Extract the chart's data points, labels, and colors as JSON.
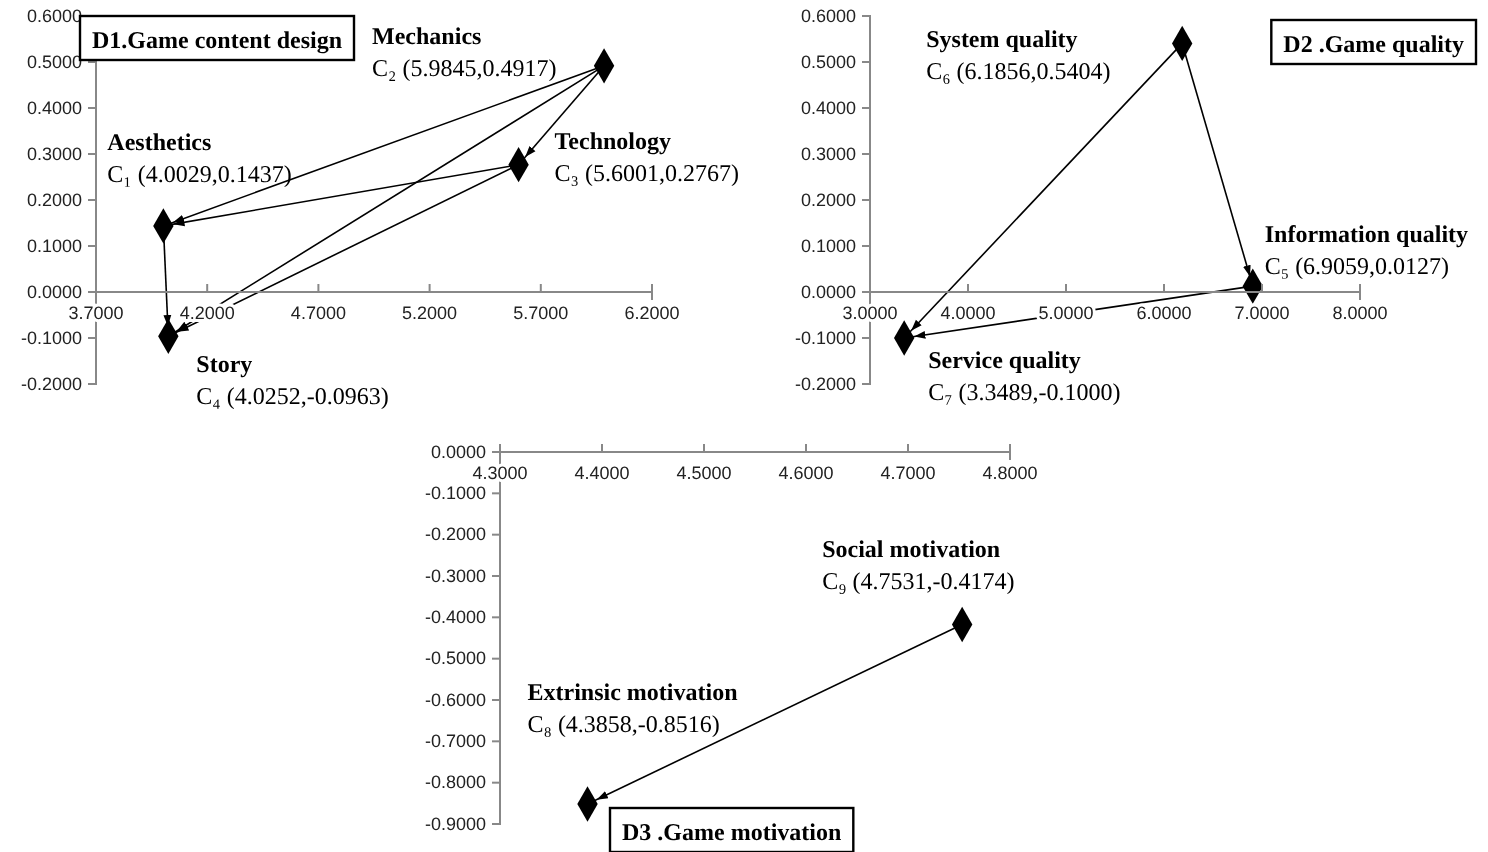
{
  "chart_data": [
    {
      "type": "scatter",
      "title": "D1.Game content design",
      "grid": false,
      "marker": "diamond",
      "xlim": [
        3.7,
        6.2
      ],
      "xticks": [
        {
          "value": 3.7,
          "label": "3.7000"
        },
        {
          "value": 4.2,
          "label": "4.2000"
        },
        {
          "value": 4.7,
          "label": "4.7000"
        },
        {
          "value": 5.2,
          "label": "5.2000"
        },
        {
          "value": 5.7,
          "label": "5.7000"
        },
        {
          "value": 6.2,
          "label": "6.2000"
        }
      ],
      "ylim": [
        -0.2,
        0.6
      ],
      "yticks": [
        {
          "value": -0.2,
          "label": "-0.2000"
        },
        {
          "value": -0.1,
          "label": "-0.1000"
        },
        {
          "value": 0,
          "label": "0.0000"
        },
        {
          "value": 0.1,
          "label": "0.1000"
        },
        {
          "value": 0.2,
          "label": "0.2000"
        },
        {
          "value": 0.3,
          "label": "0.3000"
        },
        {
          "value": 0.4,
          "label": "0.4000"
        },
        {
          "value": 0.5,
          "label": "0.5000"
        },
        {
          "value": 0.6,
          "label": "0.6000"
        }
      ],
      "series": [
        {
          "type": "scatter",
          "color": "#000000",
          "x": [
            4.0029,
            5.9845,
            5.6001,
            4.0252
          ],
          "values": [
            0.1437,
            0.4917,
            0.2767,
            -0.0963
          ]
        },
        {
          "type": "line",
          "marker": "none",
          "color": "#000000",
          "x": [
            5.9845,
            4.0029
          ],
          "values": [
            0.4917,
            0.1437
          ]
        },
        {
          "type": "line",
          "marker": "none",
          "color": "#000000",
          "x": [
            5.6001,
            4.0029
          ],
          "values": [
            0.2767,
            0.1437
          ]
        },
        {
          "type": "line",
          "marker": "none",
          "color": "#000000",
          "x": [
            5.9845,
            4.0252
          ],
          "values": [
            0.4917,
            -0.0963
          ]
        },
        {
          "type": "line",
          "marker": "none",
          "color": "#000000",
          "x": [
            5.6001,
            4.0252
          ],
          "values": [
            0.2767,
            -0.0963
          ]
        },
        {
          "type": "line",
          "marker": "none",
          "color": "#000000",
          "x": [
            4.0029,
            4.0252
          ],
          "values": [
            0.1437,
            -0.0963
          ]
        },
        {
          "type": "line",
          "marker": "none",
          "color": "#000000",
          "x": [
            5.9845,
            5.6001
          ],
          "values": [
            0.4917,
            0.2767
          ]
        }
      ],
      "annotations": [
        {
          "text": "Aesthetics\nC₁ (4.0029,0.1437)",
          "x": 4.0029,
          "y": 0.1437
        },
        {
          "text": "Mechanics\nC₂ (5.9845,0.4917)",
          "x": 5.9845,
          "y": 0.4917
        },
        {
          "text": "Technology\nC₃ (5.6001,0.2767)",
          "x": 5.6001,
          "y": 0.2767
        },
        {
          "text": "Story\nC₄ (4.0252,-0.0963)",
          "x": 4.0252,
          "y": -0.0963
        }
      ]
    },
    {
      "type": "scatter",
      "title": "D2 .Game quality",
      "grid": false,
      "marker": "diamond",
      "xlim": [
        3,
        8
      ],
      "xticks": [
        {
          "value": 3,
          "label": "3.0000"
        },
        {
          "value": 4,
          "label": "4.0000"
        },
        {
          "value": 5,
          "label": "5.0000"
        },
        {
          "value": 6,
          "label": "6.0000"
        },
        {
          "value": 7,
          "label": "7.0000"
        },
        {
          "value": 8,
          "label": "8.0000"
        }
      ],
      "ylim": [
        -0.2,
        0.6
      ],
      "yticks": [
        {
          "value": -0.2,
          "label": "-0.2000"
        },
        {
          "value": -0.1,
          "label": "-0.1000"
        },
        {
          "value": 0,
          "label": "0.0000"
        },
        {
          "value": 0.1,
          "label": "0.1000"
        },
        {
          "value": 0.2,
          "label": "0.2000"
        },
        {
          "value": 0.3,
          "label": "0.3000"
        },
        {
          "value": 0.4,
          "label": "0.4000"
        },
        {
          "value": 0.5,
          "label": "0.5000"
        },
        {
          "value": 0.6,
          "label": "0.6000"
        }
      ],
      "series": [
        {
          "type": "scatter",
          "color": "#000000",
          "x": [
            6.9059,
            6.1856,
            3.3489
          ],
          "values": [
            0.0127,
            0.5404,
            -0.1
          ]
        },
        {
          "type": "line",
          "marker": "none",
          "color": "#000000",
          "x": [
            6.1856,
            6.9059
          ],
          "values": [
            0.5404,
            0.0127
          ]
        },
        {
          "type": "line",
          "marker": "none",
          "color": "#000000",
          "x": [
            6.1856,
            3.3489
          ],
          "values": [
            0.5404,
            -0.1
          ]
        },
        {
          "type": "line",
          "marker": "none",
          "color": "#000000",
          "x": [
            6.9059,
            3.3489
          ],
          "values": [
            0.0127,
            -0.1
          ]
        }
      ],
      "annotations": [
        {
          "text": "Information quality\nC₅ (6.9059,0.0127)",
          "x": 6.9059,
          "y": 0.0127
        },
        {
          "text": "System quality\nC₆ (6.1856,0.5404)",
          "x": 6.1856,
          "y": 0.5404
        },
        {
          "text": "Service quality\nC₇ (3.3489,-0.1000)",
          "x": 3.3489,
          "y": -0.1
        }
      ]
    },
    {
      "type": "scatter",
      "title": "D3 .Game motivation",
      "grid": false,
      "marker": "diamond",
      "xlim": [
        4.3,
        4.8
      ],
      "xticks": [
        {
          "value": 4.3,
          "label": "4.3000"
        },
        {
          "value": 4.4,
          "label": "4.4000"
        },
        {
          "value": 4.5,
          "label": "4.5000"
        },
        {
          "value": 4.6,
          "label": "4.6000"
        },
        {
          "value": 4.7,
          "label": "4.7000"
        },
        {
          "value": 4.8,
          "label": "4.8000"
        }
      ],
      "ylim": [
        -0.9,
        0
      ],
      "yticks": [
        {
          "value": -0.9,
          "label": "-0.9000"
        },
        {
          "value": -0.8,
          "label": "-0.8000"
        },
        {
          "value": -0.7,
          "label": "-0.7000"
        },
        {
          "value": -0.6,
          "label": "-0.6000"
        },
        {
          "value": -0.5,
          "label": "-0.5000"
        },
        {
          "value": -0.4,
          "label": "-0.4000"
        },
        {
          "value": -0.3,
          "label": "-0.3000"
        },
        {
          "value": -0.2,
          "label": "-0.2000"
        },
        {
          "value": -0.1,
          "label": "-0.1000"
        },
        {
          "value": 0,
          "label": "0.0000"
        }
      ],
      "series": [
        {
          "type": "scatter",
          "color": "#000000",
          "x": [
            4.3858,
            4.7531
          ],
          "values": [
            -0.8516,
            -0.4174
          ]
        },
        {
          "type": "line",
          "marker": "none",
          "color": "#000000",
          "x": [
            4.7531,
            4.3858
          ],
          "values": [
            -0.4174,
            -0.8516
          ]
        }
      ],
      "annotations": [
        {
          "text": "Extrinsic motivation\nC₈ (4.3858,-0.8516)",
          "x": 4.3858,
          "y": -0.8516
        },
        {
          "text": "Social motivation\nC₉ (4.7531,-0.4174)",
          "x": 4.7531,
          "y": -0.4174
        }
      ]
    }
  ]
}
